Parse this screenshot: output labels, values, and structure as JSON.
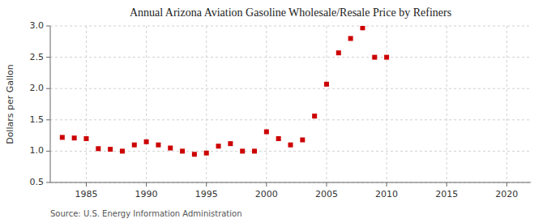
{
  "chart_data": {
    "type": "scatter",
    "title": "Annual Arizona Aviation Gasoline Wholesale/Resale Price by Refiners",
    "y_label": "Dollars per Gallon",
    "annotations": [
      "Source: U.S. Energy Information Administration"
    ],
    "x": [
      1983,
      1984,
      1985,
      1986,
      1987,
      1988,
      1989,
      1990,
      1991,
      1992,
      1993,
      1994,
      1995,
      1996,
      1997,
      1998,
      1999,
      2000,
      2001,
      2002,
      2003,
      2004,
      2005,
      2006,
      2007,
      2008,
      2009,
      2010
    ],
    "values": [
      1.22,
      1.21,
      1.2,
      1.04,
      1.03,
      1.0,
      1.1,
      1.15,
      1.1,
      1.05,
      1.0,
      0.95,
      0.97,
      1.08,
      1.12,
      1.0,
      1.0,
      1.31,
      1.2,
      1.1,
      1.18,
      1.56,
      2.07,
      2.57,
      2.8,
      2.97,
      2.5,
      2.5
    ],
    "color": "#cc0000",
    "marker": "square",
    "xlim": [
      1982,
      2022
    ],
    "ylim": [
      0.5,
      3.0
    ],
    "xticks": [
      1985,
      1990,
      1995,
      2000,
      2005,
      2010,
      2015,
      2020
    ],
    "yticks": [
      0.5,
      {
        "value": 1.0,
        "label": "1.0"
      },
      1.5,
      {
        "value": 2.0,
        "label": "2.0"
      },
      2.5,
      {
        "value": 3.0,
        "label": "3.0"
      }
    ],
    "grid": true
  }
}
